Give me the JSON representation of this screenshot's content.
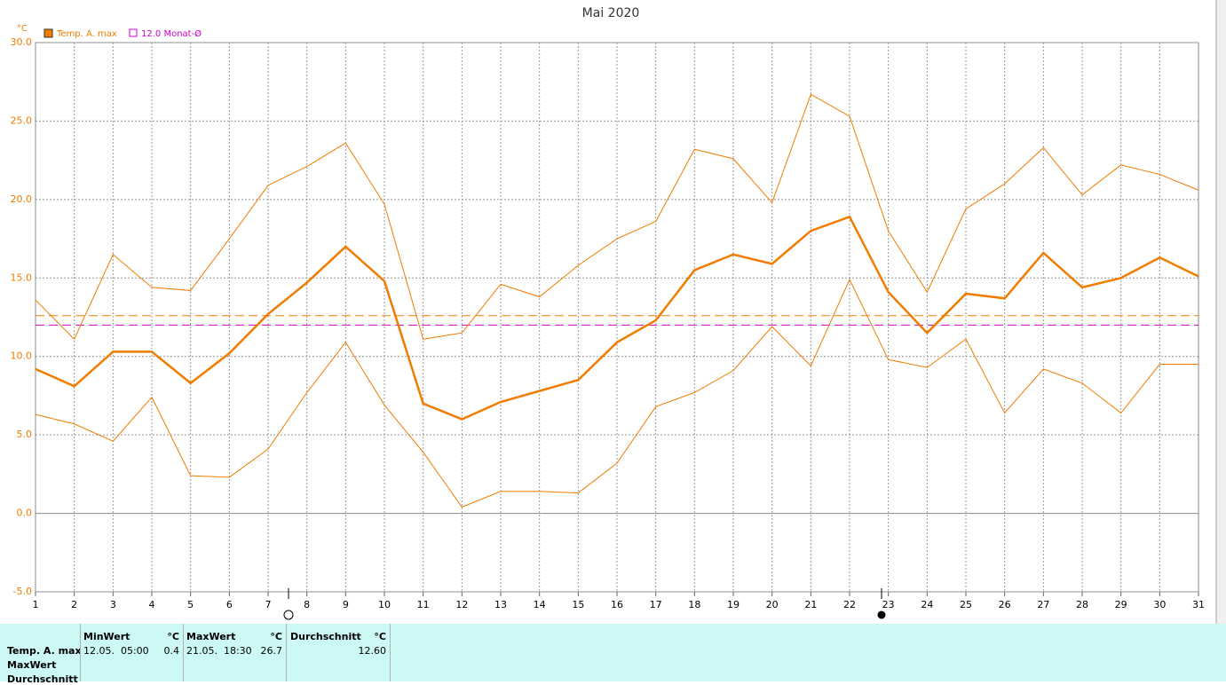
{
  "chart_data": {
    "type": "line",
    "title": "Mai 2020",
    "y_unit": "°C",
    "categories": [
      "1",
      "2",
      "3",
      "4",
      "5",
      "6",
      "7",
      "8",
      "9",
      "10",
      "11",
      "12",
      "13",
      "14",
      "15",
      "16",
      "17",
      "18",
      "19",
      "20",
      "21",
      "22",
      "23",
      "24",
      "25",
      "26",
      "27",
      "28",
      "29",
      "30",
      "31"
    ],
    "series": [
      {
        "name": "Temp. A. max",
        "color": "#f07c00",
        "width": 2.5,
        "values": [
          9.2,
          8.1,
          10.3,
          10.3,
          8.3,
          10.2,
          12.7,
          14.7,
          17.0,
          14.8,
          7.0,
          6.0,
          7.1,
          7.8,
          8.5,
          10.9,
          12.3,
          15.5,
          16.5,
          15.9,
          18.0,
          18.9,
          14.1,
          11.5,
          14.0,
          13.7,
          16.6,
          14.4,
          15.0,
          16.3,
          15.1
        ]
      },
      {
        "color": "#f07c00",
        "width": 1,
        "values": [
          13.6,
          11.1,
          16.5,
          14.4,
          14.2,
          17.5,
          20.9,
          22.1,
          23.6,
          19.7,
          11.1,
          11.5,
          14.6,
          13.8,
          15.8,
          17.5,
          18.6,
          23.2,
          22.6,
          19.8,
          26.7,
          25.3,
          18.0,
          14.1,
          19.4,
          21.0,
          23.3,
          20.3,
          22.2,
          21.6,
          20.6
        ]
      },
      {
        "color": "#f07c00",
        "width": 1,
        "values": [
          6.3,
          5.7,
          4.6,
          7.4,
          2.4,
          2.3,
          4.1,
          7.7,
          10.9,
          6.9,
          3.9,
          0.4,
          1.4,
          1.4,
          1.3,
          3.2,
          6.8,
          7.7,
          9.1,
          11.9,
          9.4,
          14.9,
          9.8,
          9.3,
          11.1,
          6.4,
          9.2,
          8.3,
          6.4,
          9.5,
          9.5
        ]
      }
    ],
    "reference_lines": [
      {
        "value": 12.6,
        "color": "#f07c00"
      },
      {
        "value": 12.0,
        "label": "12.0 Monat-Ø",
        "color": "#cc00cc"
      }
    ],
    "ylim": [
      -5,
      30
    ],
    "yticks": [
      {
        "value": -5,
        "label": "-5.0"
      },
      {
        "value": 0,
        "label": "0.0"
      },
      {
        "value": 5,
        "label": "5.0"
      },
      {
        "value": 10,
        "label": "10.0"
      },
      {
        "value": 15,
        "label": "15.0"
      },
      {
        "value": 20,
        "label": "20.0"
      },
      {
        "value": 25,
        "label": "25.0"
      },
      {
        "value": 30,
        "label": "30.0"
      }
    ],
    "grid": true
  },
  "table": {
    "row_labels": [
      "Temp. A. max",
      "MaxWert",
      "Durchschnitt"
    ],
    "groups": [
      {
        "title": "MinWert",
        "unit": "°C",
        "time": "12.05.  05:00",
        "value": "0.4"
      },
      {
        "title": "MaxWert",
        "unit": "°C",
        "time": "21.05.  18:30",
        "value": "26.7"
      },
      {
        "title": "Durchschnitt",
        "unit": "°C",
        "value": "12.60"
      }
    ]
  }
}
